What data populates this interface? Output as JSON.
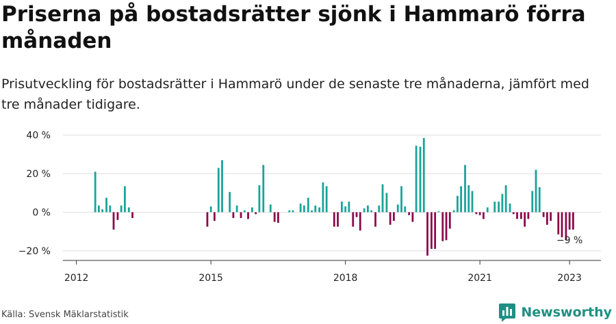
{
  "title": "Priserna på bostadsrätter sjönk i Hammarö förra månaden",
  "subtitle": "Prisutveckling för bostadsrätter i Hammarö under de senaste tre månaderna, jämfört med tre månader tidigare.",
  "source": "Källa: Svensk Mäklarstatistik",
  "brand": {
    "name": "Newsworthy",
    "icon": "bar-chart-logo-icon"
  },
  "colors": {
    "positive": "#1aa399",
    "negative": "#8b0a4b",
    "grid": "#dddddd",
    "axis": "#333333",
    "brand": "#1f8f83"
  },
  "chart_data": {
    "type": "bar",
    "xlabel": "",
    "ylabel": "",
    "ylim": [
      -25,
      42
    ],
    "yticks": [
      -20,
      0,
      20,
      40
    ],
    "ytick_labels": [
      "−20 %",
      "0 %",
      "20 %",
      "40 %"
    ],
    "xlim": [
      2011.7,
      2023.7
    ],
    "xticks": [
      2012,
      2015,
      2018,
      2021,
      2023
    ],
    "xtick_labels": [
      "2012",
      "2015",
      "2018",
      "2021",
      "2023"
    ],
    "grid": true,
    "annotation": {
      "text": "−9 %",
      "x": 2023.0,
      "y": -9
    },
    "points": [
      {
        "x": 2012.42,
        "y": 21
      },
      {
        "x": 2012.5,
        "y": 3.5
      },
      {
        "x": 2012.58,
        "y": 1.5
      },
      {
        "x": 2012.67,
        "y": 7.5
      },
      {
        "x": 2012.75,
        "y": 3.5
      },
      {
        "x": 2012.83,
        "y": -9
      },
      {
        "x": 2012.92,
        "y": -4
      },
      {
        "x": 2013.0,
        "y": 3.5
      },
      {
        "x": 2013.08,
        "y": 13.5
      },
      {
        "x": 2013.17,
        "y": 2.5
      },
      {
        "x": 2013.25,
        "y": -3
      },
      {
        "x": 2014.92,
        "y": -7.5
      },
      {
        "x": 2015.0,
        "y": 3
      },
      {
        "x": 2015.08,
        "y": -4.5
      },
      {
        "x": 2015.17,
        "y": 23
      },
      {
        "x": 2015.25,
        "y": 27
      },
      {
        "x": 2015.42,
        "y": 10.5
      },
      {
        "x": 2015.5,
        "y": -3
      },
      {
        "x": 2015.58,
        "y": 3.5
      },
      {
        "x": 2015.67,
        "y": -3
      },
      {
        "x": 2015.75,
        "y": 1
      },
      {
        "x": 2015.83,
        "y": -3.5
      },
      {
        "x": 2015.92,
        "y": 2.5
      },
      {
        "x": 2016.0,
        "y": -1
      },
      {
        "x": 2016.08,
        "y": 14
      },
      {
        "x": 2016.17,
        "y": 24.5
      },
      {
        "x": 2016.33,
        "y": 4
      },
      {
        "x": 2016.42,
        "y": -5
      },
      {
        "x": 2016.5,
        "y": -5.5
      },
      {
        "x": 2016.75,
        "y": 1
      },
      {
        "x": 2016.83,
        "y": 1
      },
      {
        "x": 2017.0,
        "y": 4.5
      },
      {
        "x": 2017.08,
        "y": 3.5
      },
      {
        "x": 2017.17,
        "y": 7.5
      },
      {
        "x": 2017.25,
        "y": 1
      },
      {
        "x": 2017.33,
        "y": 3.5
      },
      {
        "x": 2017.42,
        "y": 2.5
      },
      {
        "x": 2017.5,
        "y": 15.5
      },
      {
        "x": 2017.58,
        "y": 13.5
      },
      {
        "x": 2017.75,
        "y": -7.5
      },
      {
        "x": 2017.83,
        "y": -7.5
      },
      {
        "x": 2017.92,
        "y": 5.5
      },
      {
        "x": 2018.0,
        "y": 3
      },
      {
        "x": 2018.08,
        "y": 5.5
      },
      {
        "x": 2018.17,
        "y": -7.5
      },
      {
        "x": 2018.25,
        "y": -2.5
      },
      {
        "x": 2018.33,
        "y": -9.5
      },
      {
        "x": 2018.42,
        "y": 2
      },
      {
        "x": 2018.5,
        "y": 3.5
      },
      {
        "x": 2018.58,
        "y": 1
      },
      {
        "x": 2018.67,
        "y": -7.5
      },
      {
        "x": 2018.75,
        "y": 3.5
      },
      {
        "x": 2018.83,
        "y": 14.5
      },
      {
        "x": 2018.92,
        "y": 10
      },
      {
        "x": 2019.0,
        "y": -6.5
      },
      {
        "x": 2019.08,
        "y": -4.5
      },
      {
        "x": 2019.17,
        "y": 4
      },
      {
        "x": 2019.25,
        "y": 13.5
      },
      {
        "x": 2019.33,
        "y": 3
      },
      {
        "x": 2019.42,
        "y": -1.5
      },
      {
        "x": 2019.5,
        "y": -5
      },
      {
        "x": 2019.58,
        "y": 34.5
      },
      {
        "x": 2019.67,
        "y": 34
      },
      {
        "x": 2019.75,
        "y": 38.5
      },
      {
        "x": 2019.83,
        "y": -22.5
      },
      {
        "x": 2019.92,
        "y": -19
      },
      {
        "x": 2020.0,
        "y": -19
      },
      {
        "x": 2020.08,
        "y": 0.5
      },
      {
        "x": 2020.17,
        "y": -15
      },
      {
        "x": 2020.25,
        "y": -14.5
      },
      {
        "x": 2020.33,
        "y": -8.5
      },
      {
        "x": 2020.42,
        "y": 1
      },
      {
        "x": 2020.5,
        "y": 8.5
      },
      {
        "x": 2020.58,
        "y": 13.5
      },
      {
        "x": 2020.67,
        "y": 24.5
      },
      {
        "x": 2020.75,
        "y": 14
      },
      {
        "x": 2020.83,
        "y": 11
      },
      {
        "x": 2020.92,
        "y": -1
      },
      {
        "x": 2021.0,
        "y": -1.5
      },
      {
        "x": 2021.08,
        "y": -3.5
      },
      {
        "x": 2021.17,
        "y": 2.5
      },
      {
        "x": 2021.33,
        "y": 5.5
      },
      {
        "x": 2021.42,
        "y": 5.5
      },
      {
        "x": 2021.5,
        "y": 9.5
      },
      {
        "x": 2021.58,
        "y": 14
      },
      {
        "x": 2021.67,
        "y": 4.5
      },
      {
        "x": 2021.75,
        "y": -1
      },
      {
        "x": 2021.83,
        "y": -3.5
      },
      {
        "x": 2021.92,
        "y": -3.5
      },
      {
        "x": 2022.0,
        "y": -7.5
      },
      {
        "x": 2022.08,
        "y": -3.5
      },
      {
        "x": 2022.17,
        "y": 11
      },
      {
        "x": 2022.25,
        "y": 22
      },
      {
        "x": 2022.33,
        "y": 13
      },
      {
        "x": 2022.42,
        "y": -2.5
      },
      {
        "x": 2022.5,
        "y": -6.5
      },
      {
        "x": 2022.58,
        "y": -4.5
      },
      {
        "x": 2022.75,
        "y": -11.5
      },
      {
        "x": 2022.83,
        "y": -13
      },
      {
        "x": 2022.92,
        "y": -14.5
      },
      {
        "x": 2023.0,
        "y": -9
      },
      {
        "x": 2023.08,
        "y": -9
      }
    ]
  }
}
